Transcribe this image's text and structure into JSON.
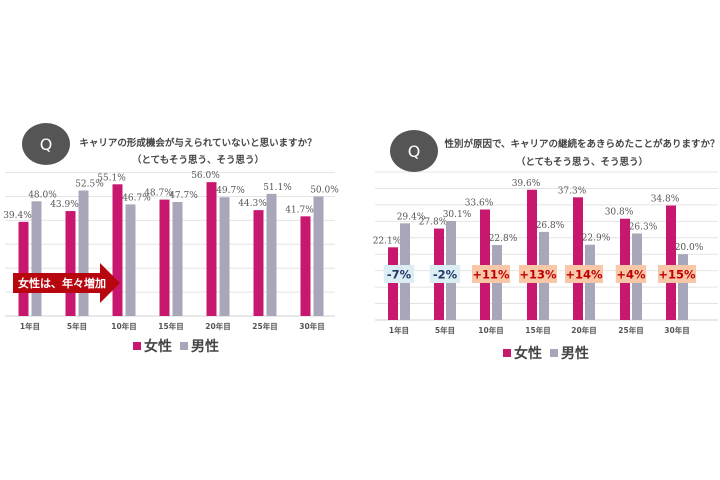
{
  "colors": {
    "female": "#c8176e",
    "male": "#a8a7b9",
    "q_badge": "#555555",
    "arrow": "#b8060e",
    "neg_box": "#dcedf4",
    "neg_text": "#1f3864",
    "pos_box": "#f7c7a8",
    "pos_text": "#c00000",
    "grid": "#e4e4e4"
  },
  "chart_data": [
    {
      "type": "bar",
      "badge": "Q",
      "title": "キャリアの形成機会が与えられていないと思いますか？",
      "subtitle": "（とてもそう思う、そう思う）",
      "categories": [
        "1年目",
        "5年目",
        "10年目",
        "15年目",
        "20年目",
        "25年目",
        "30年目"
      ],
      "series": [
        {
          "name": "女性",
          "values": [
            39.4,
            43.9,
            55.1,
            48.7,
            56.0,
            44.3,
            41.7
          ]
        },
        {
          "name": "男性",
          "values": [
            48.0,
            52.5,
            46.7,
            47.7,
            49.7,
            51.1,
            50.0
          ]
        }
      ],
      "value_labels": [
        [
          "39.4%",
          "43.9%",
          "55.1%",
          "48.7%",
          "56.0%",
          "44.3%",
          "41.7%"
        ],
        [
          "48.0%",
          "52.5%",
          "46.7%",
          "47.7%",
          "49.7%",
          "51.1%",
          "50.0%"
        ]
      ],
      "annotation": "女性は、年々増加",
      "ylim": [
        0,
        60
      ],
      "grid": true,
      "legend": "bottom"
    },
    {
      "type": "bar",
      "badge": "Q",
      "title": "性別が原因で、キャリアの継続をあきらめたことがありますか？",
      "subtitle": "（とてもそう思う、そう思う）",
      "categories": [
        "1年目",
        "5年目",
        "10年目",
        "15年目",
        "20年目",
        "25年目",
        "30年目"
      ],
      "series": [
        {
          "name": "女性",
          "values": [
            22.1,
            27.8,
            33.6,
            39.6,
            37.3,
            30.8,
            34.8
          ]
        },
        {
          "name": "男性",
          "values": [
            29.4,
            30.1,
            22.8,
            26.8,
            22.9,
            26.3,
            20.0
          ]
        }
      ],
      "value_labels": [
        [
          "22.1%",
          "27.8%",
          "33.6%",
          "39.6%",
          "37.3%",
          "30.8%",
          "34.8%"
        ],
        [
          "29.4%",
          "30.1%",
          "22.8%",
          "26.8%",
          "22.9%",
          "26.3%",
          "20.0%"
        ]
      ],
      "differences": [
        "-7%",
        "-2%",
        "+11%",
        "+13%",
        "+14%",
        "+4%",
        "+15%"
      ],
      "ylim": [
        0,
        45
      ],
      "grid": true,
      "legend": "bottom"
    }
  ]
}
